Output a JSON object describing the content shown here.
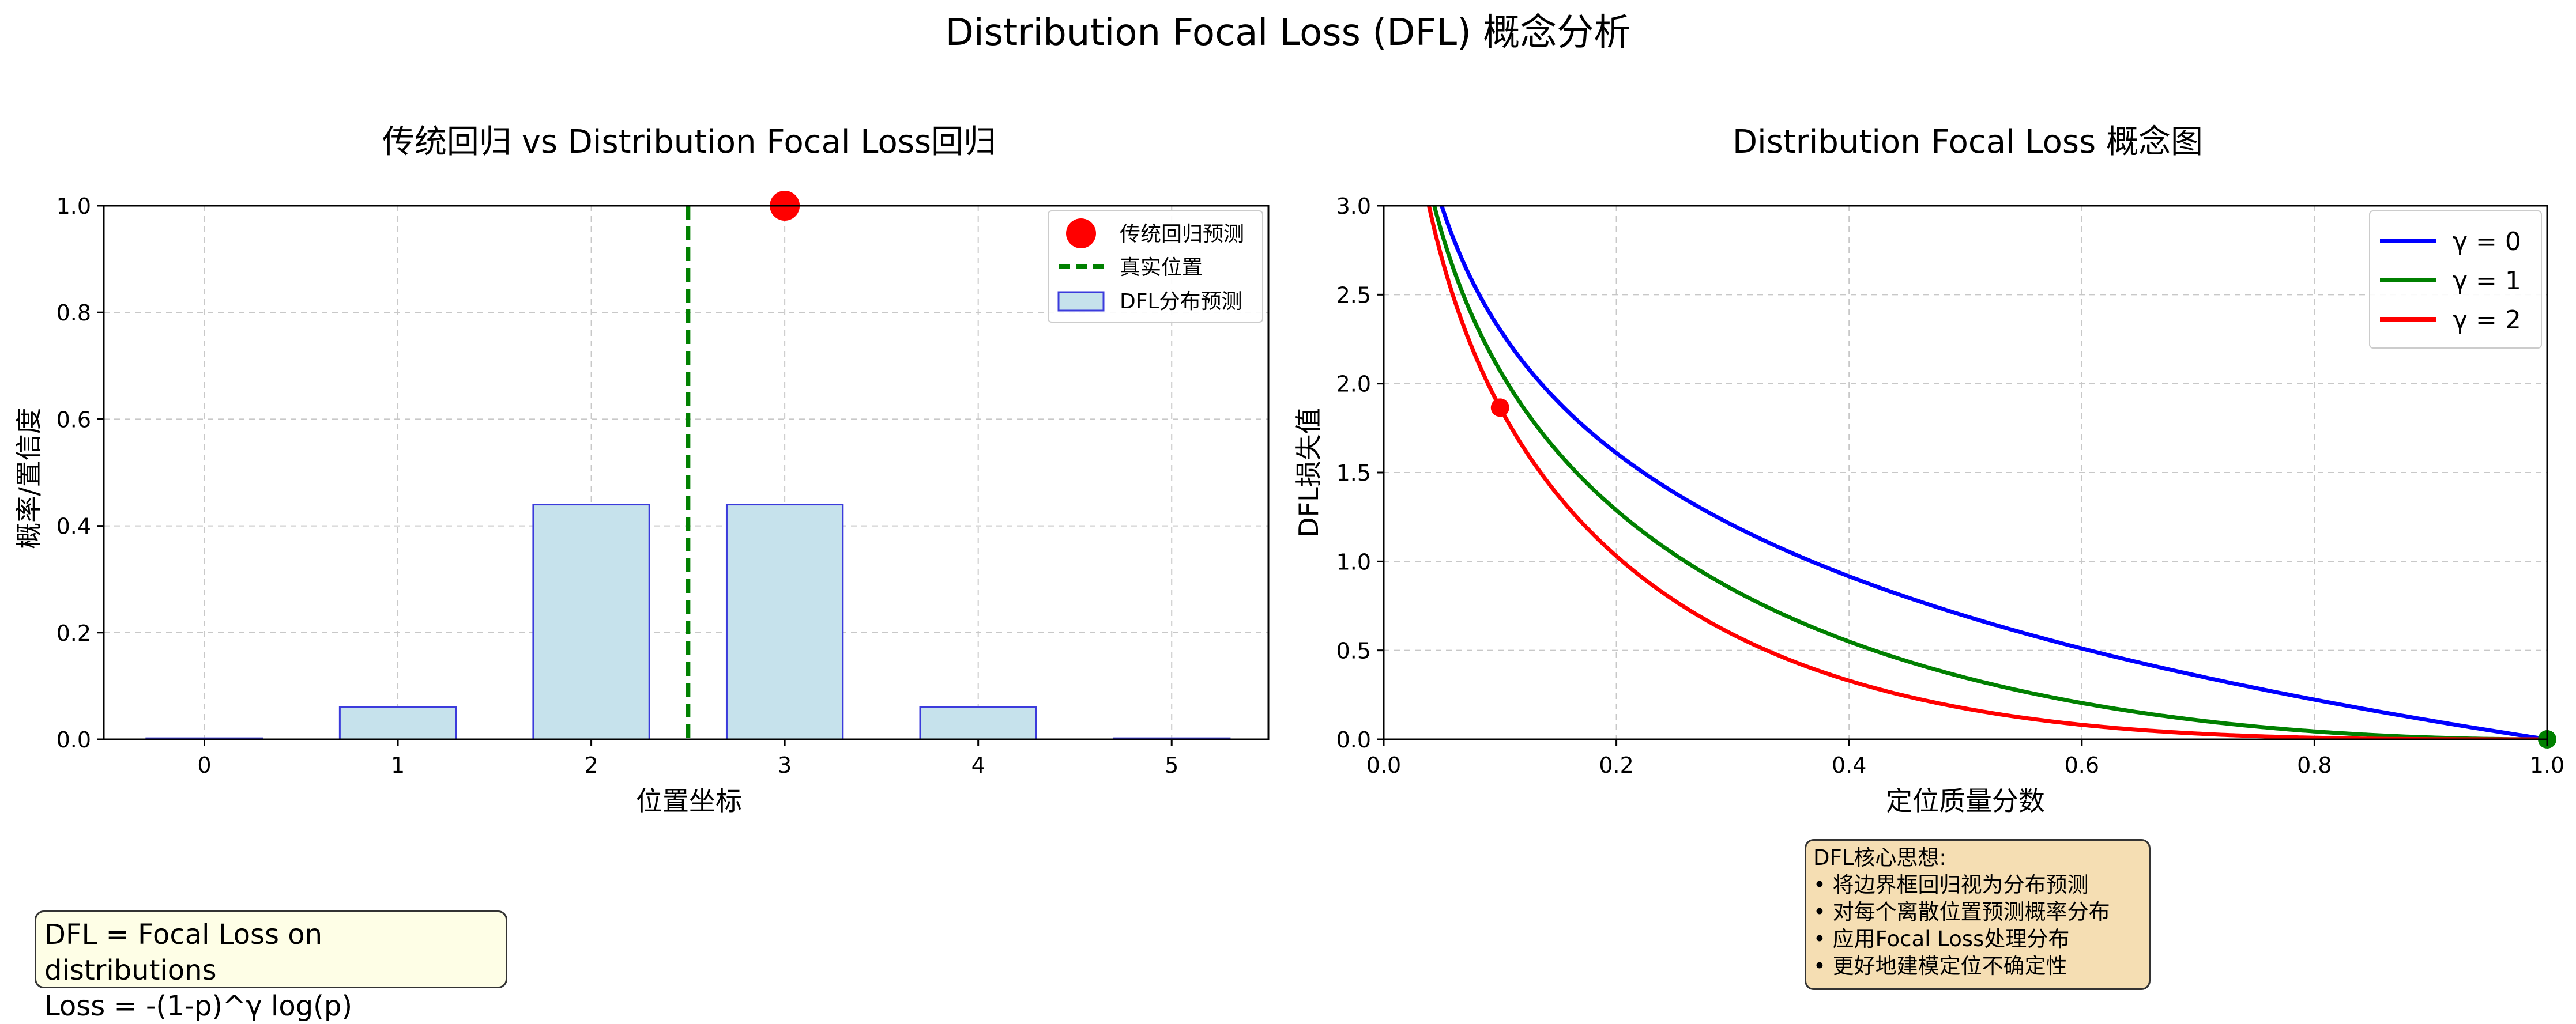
{
  "figure": {
    "suptitle": "Distribution Focal Loss (DFL) 概念分析"
  },
  "colors": {
    "bar_fill": "#c6e2ec",
    "bar_edge": "#3b3bdc",
    "true_line": "#008000",
    "pred_point": "#ff0000",
    "gamma0": "#0000ff",
    "gamma1": "#008000",
    "gamma2": "#ff0000",
    "grid": "#c8c8c8"
  },
  "chart_data": [
    {
      "type": "bar",
      "title": "传统回归 vs Distribution Focal Loss回归",
      "xlabel": "位置坐标",
      "ylabel": "概率/置信度",
      "categories": [
        "0",
        "1",
        "2",
        "3",
        "4",
        "5"
      ],
      "x": [
        0,
        1,
        2,
        3,
        4,
        5
      ],
      "values": [
        0.002,
        0.06,
        0.44,
        0.44,
        0.06,
        0.002
      ],
      "xlim": [
        -0.52,
        5.5
      ],
      "ylim": [
        0,
        1.0
      ],
      "yticks": [
        "0.0",
        "0.2",
        "0.4",
        "0.6",
        "0.8",
        "1.0"
      ],
      "true_position": 2.5,
      "traditional_prediction": {
        "x": 3,
        "y": 1.0
      },
      "grid": true,
      "legend_position": "top-right",
      "legend": [
        {
          "label": "传统回归预测",
          "kind": "marker"
        },
        {
          "label": "真实位置",
          "kind": "dashed-line"
        },
        {
          "label": "DFL分布预测",
          "kind": "patch"
        }
      ]
    },
    {
      "type": "line",
      "title": "Distribution Focal Loss 概念图",
      "xlabel": "定位质量分数",
      "ylabel": "DFL损失值",
      "xlim": [
        0,
        1.0
      ],
      "ylim": [
        0,
        3.0
      ],
      "xticks": [
        "0.0",
        "0.2",
        "0.4",
        "0.6",
        "0.8",
        "1.0"
      ],
      "yticks": [
        "0.0",
        "0.5",
        "1.0",
        "1.5",
        "2.0",
        "2.5",
        "3.0"
      ],
      "formula": "-(1-p)^γ log(p)",
      "series": [
        {
          "name": "γ = 0",
          "gamma": 0
        },
        {
          "name": "γ = 1",
          "gamma": 1
        },
        {
          "name": "γ = 2",
          "gamma": 2
        }
      ],
      "markers": [
        {
          "x": 0.1,
          "y": 1.865,
          "color": "red"
        },
        {
          "x": 1.0,
          "y": 0.0,
          "color": "green"
        }
      ],
      "grid": true,
      "legend_position": "top-right"
    }
  ],
  "annotations": {
    "formula_box": [
      "DFL = Focal Loss on distributions",
      "Loss = -(1-p)^γ log(p)"
    ],
    "concept_box": [
      "DFL核心思想:",
      "• 将边界框回归视为分布预测",
      "• 对每个离散位置预测概率分布",
      "• 应用Focal Loss处理分布",
      "• 更好地建模定位不确定性"
    ]
  }
}
